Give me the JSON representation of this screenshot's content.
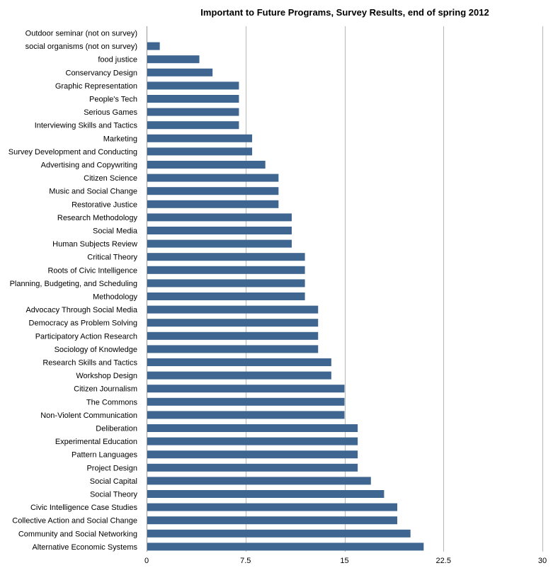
{
  "chart_data": {
    "type": "bar",
    "orientation": "horizontal",
    "title": "Important to Future Programs, Survey Results, end of spring 2012",
    "xlabel": "",
    "ylabel": "",
    "xlim": [
      0,
      30
    ],
    "xticks": [
      "0",
      "7.5",
      "15",
      "22.5",
      "30"
    ],
    "grid": "vertical",
    "bar_color": "#3e6691",
    "categories": [
      "Outdoor seminar (not on survey)",
      "social organisms (not on survey)",
      "food justice",
      "Conservancy Design",
      "Graphic Representation",
      "People's Tech",
      "Serious Games",
      "Interviewing Skills and Tactics",
      "Marketing",
      "Survey Development and Conducting",
      "Advertising and Copywriting",
      "Citizen Science",
      "Music and Social Change",
      "Restorative Justice",
      "Research Methodology",
      "Social Media",
      "Human Subjects Review",
      "Critical Theory",
      "Roots of Civic Intelligence",
      "Planning, Budgeting, and Scheduling",
      "Methodology",
      "Advocacy Through Social Media",
      "Democracy as Problem Solving",
      "Participatory Action Research",
      "Sociology of Knowledge",
      "Research Skills and Tactics",
      "Workshop Design",
      "Citizen Journalism",
      "The Commons",
      "Non-Violent Communication",
      "Deliberation",
      "Experimental Education",
      "Pattern Languages",
      "Project Design",
      "Social Capital",
      "Social Theory",
      "Civic Intelligence Case Studies",
      "Collective Action and Social Change",
      "Community and Social Networking",
      "Alternative Economic Systems"
    ],
    "values": [
      0,
      1,
      4,
      5,
      7,
      7,
      7,
      7,
      8,
      8,
      9,
      10,
      10,
      10,
      11,
      11,
      11,
      12,
      12,
      12,
      12,
      13,
      13,
      13,
      13,
      14,
      14,
      15,
      15,
      15,
      16,
      16,
      16,
      16,
      17,
      18,
      19,
      19,
      20,
      21
    ]
  }
}
